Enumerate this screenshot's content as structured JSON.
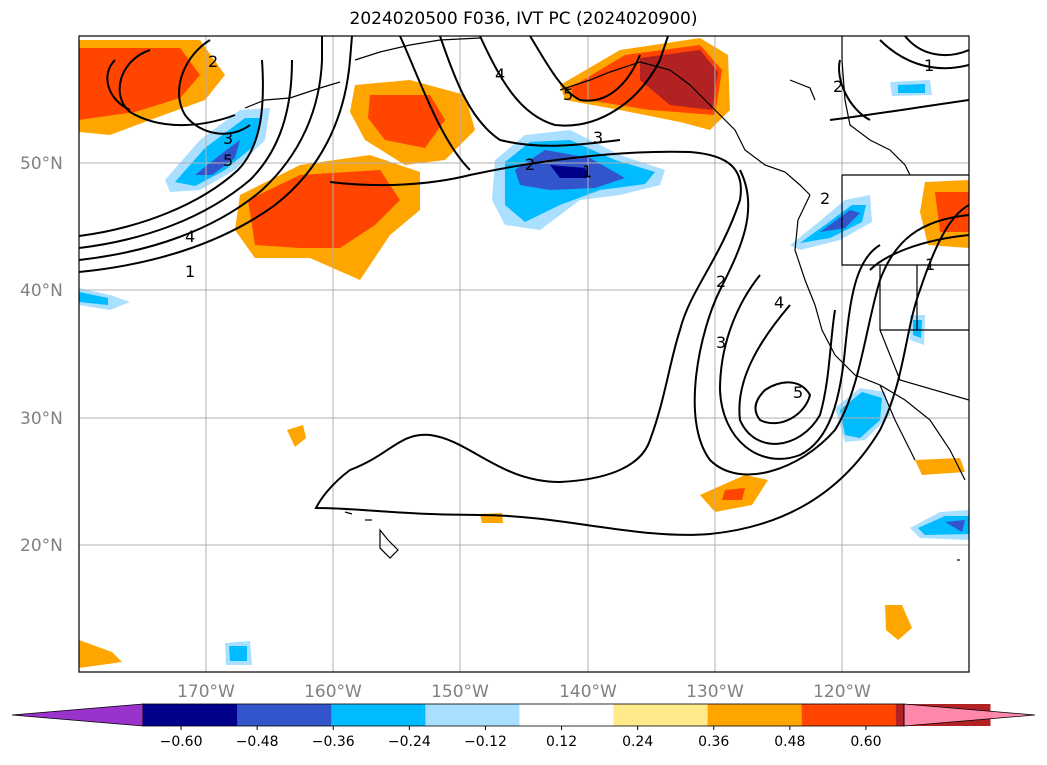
{
  "title": "2024020500 F036, IVT PC (2024020900)",
  "lat_labels": [
    "50°N",
    "40°N",
    "30°N",
    "20°N"
  ],
  "lon_labels": [
    "170°W",
    "160°W",
    "150°W",
    "140°W",
    "130°W",
    "120°W"
  ],
  "colorbar": {
    "ticks": [
      "−0.60",
      "−0.48",
      "−0.36",
      "−0.24",
      "−0.12",
      "0.12",
      "0.24",
      "0.36",
      "0.48",
      "0.60"
    ],
    "colors": [
      "#9933cc",
      "#00008b",
      "#3355cc",
      "#00bbff",
      "#aadfff",
      "#ffffff",
      "#ffe98a",
      "#ffa500",
      "#ff4500",
      "#b22222",
      "#ff88aa"
    ]
  },
  "contour_labels": [
    "1",
    "2",
    "3",
    "4",
    "5"
  ]
}
